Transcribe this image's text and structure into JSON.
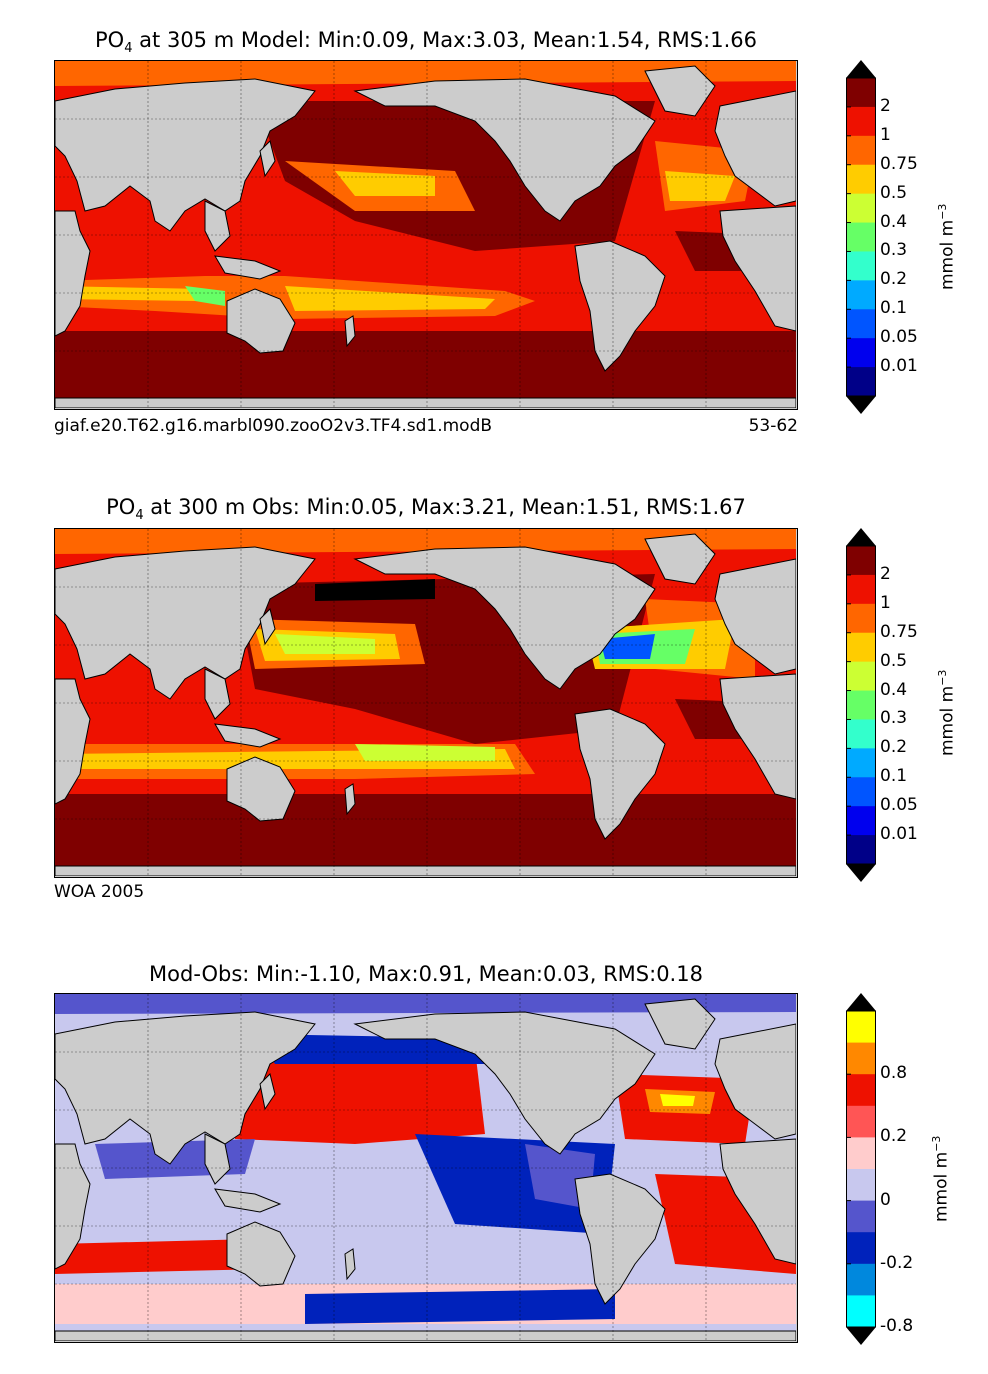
{
  "panels": [
    {
      "title_prefix": "PO",
      "title_sub": "4",
      "title_rest": " at 305 m Model: Min:0.09, Max:3.03, Mean:1.54, RMS:1.66",
      "caption_left": "giaf.e20.T62.g16.marbl090.zooO2v3.TF4.sd1.modB",
      "caption_right": "53-62",
      "colorbar": {
        "unit": "mmol m",
        "unit_exp": "−3",
        "ticks": [
          "2",
          "1",
          "0.75",
          "0.5",
          "0.4",
          "0.3",
          "0.2",
          "0.1",
          "0.05",
          "0.01"
        ],
        "colors": [
          "#7f0000",
          "#ee1100",
          "#ff6600",
          "#ffcc00",
          "#ccff33",
          "#66ff66",
          "#33ffcc",
          "#00aaff",
          "#0055ff",
          "#0000ee",
          "#000088"
        ],
        "over": "#000000",
        "under": "#000000"
      }
    },
    {
      "title_prefix": "PO",
      "title_sub": "4",
      "title_rest": " at 300 m Obs: Min:0.05, Max:3.21, Mean:1.51, RMS:1.67",
      "caption_left": "WOA 2005",
      "caption_right": "",
      "colorbar": {
        "unit": "mmol m",
        "unit_exp": "−3",
        "ticks": [
          "2",
          "1",
          "0.75",
          "0.5",
          "0.4",
          "0.3",
          "0.2",
          "0.1",
          "0.05",
          "0.01"
        ],
        "colors": [
          "#7f0000",
          "#ee1100",
          "#ff6600",
          "#ffcc00",
          "#ccff33",
          "#66ff66",
          "#33ffcc",
          "#00aaff",
          "#0055ff",
          "#0000ee",
          "#000088"
        ],
        "over": "#000000",
        "under": "#000000"
      }
    },
    {
      "title_prefix": "Mod-Obs: Min:-1.10, Max:0.91, Mean:0.03, RMS:0.18",
      "title_sub": "",
      "title_rest": "",
      "caption_left": "",
      "caption_right": "",
      "colorbar": {
        "unit": "mmol m",
        "unit_exp": "−3",
        "ticks": [
          "0.8",
          "0.2",
          "0",
          "-0.2",
          "-0.8"
        ],
        "colors": [
          "#ffff00",
          "#ff8800",
          "#ee1100",
          "#ff5555",
          "#ffcccc",
          "#c8c8ee",
          "#5555cc",
          "#0022bb",
          "#0088dd",
          "#00ffff"
        ],
        "over": "#000000",
        "under": "#000000"
      }
    }
  ]
}
